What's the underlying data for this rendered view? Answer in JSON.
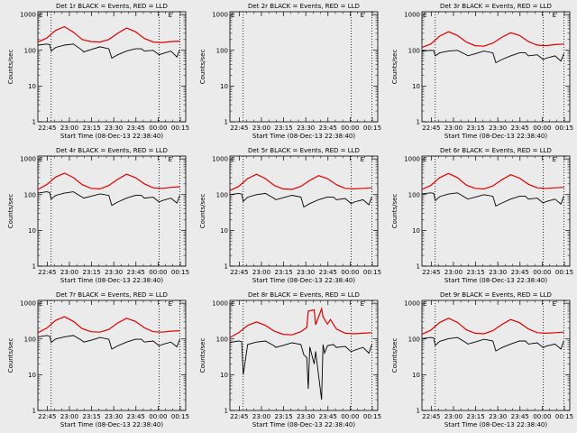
{
  "colors": {
    "background": "#ebebeb",
    "events": "#000000",
    "lld": "#e00000",
    "axis": "#000000"
  },
  "common": {
    "ylabel": "Counts/sec",
    "xlabel": "Start Time (08-Dec-13 22:38:40)",
    "x_ticks": [
      "22:45",
      "23:00",
      "23:15",
      "23:30",
      "23:45",
      "00:00",
      "00:15"
    ],
    "x_tick_minutes": [
      6.33,
      21.33,
      36.33,
      51.33,
      66.33,
      81.33,
      96.33
    ],
    "y_ticks": [
      "1",
      "10",
      "100",
      "1000"
    ],
    "y_tick_values": [
      1,
      10,
      100,
      1000
    ],
    "ylim": [
      1,
      1200
    ],
    "xlim_minutes": [
      0,
      100
    ],
    "marker_label": "E",
    "marker_minutes": 90,
    "dotted_line_minutes": [
      9,
      82,
      96
    ]
  },
  "chart_data": [
    {
      "type": "line",
      "title": "Det 1r BLACK = Events, RED = LLD",
      "ylabel": "Counts/sec",
      "xlabel": "Start Time (08-Dec-13 22:38:40)",
      "dotted": [
        9,
        82,
        96
      ],
      "marker": "E",
      "series": [
        {
          "name": "LLD",
          "color": "#e00000",
          "x": [
            0,
            6,
            12,
            18,
            24,
            30,
            36,
            42,
            48,
            54,
            60,
            66,
            72,
            78,
            84,
            90,
            96
          ],
          "y": [
            170,
            220,
            360,
            460,
            320,
            200,
            175,
            170,
            200,
            300,
            420,
            330,
            215,
            170,
            165,
            175,
            180
          ]
        },
        {
          "name": "Events",
          "color": "#000000",
          "x": [
            0,
            6,
            8,
            9,
            12,
            18,
            24,
            30,
            31,
            36,
            42,
            48,
            50,
            54,
            60,
            66,
            70,
            72,
            78,
            82,
            84,
            90,
            94,
            96
          ],
          "y": [
            140,
            150,
            145,
            95,
            120,
            140,
            150,
            100,
            90,
            105,
            125,
            110,
            60,
            75,
            95,
            110,
            110,
            95,
            100,
            75,
            80,
            95,
            65,
            105
          ]
        }
      ]
    },
    {
      "type": "line",
      "title": "Det 2r BLACK = Events, RED = LLD",
      "ylabel": "Counts/sec",
      "xlabel": "Start Time (08-Dec-13 22:38:40)",
      "dotted": [
        9,
        82,
        96
      ],
      "marker": "E",
      "series": []
    },
    {
      "type": "line",
      "title": "Det 3r BLACK = Events, RED = LLD",
      "ylabel": "Counts/sec",
      "xlabel": "Start Time (08-Dec-13 22:38:40)",
      "dotted": [
        9,
        82,
        96
      ],
      "marker": "E",
      "series": [
        {
          "name": "LLD",
          "color": "#e00000",
          "x": [
            0,
            6,
            12,
            18,
            24,
            30,
            36,
            42,
            48,
            54,
            60,
            66,
            72,
            78,
            84,
            90,
            96
          ],
          "y": [
            120,
            150,
            250,
            330,
            260,
            170,
            135,
            130,
            160,
            230,
            310,
            260,
            175,
            140,
            135,
            145,
            150
          ]
        },
        {
          "name": "Events",
          "color": "#000000",
          "x": [
            0,
            6,
            8,
            9,
            12,
            18,
            24,
            30,
            31,
            36,
            42,
            48,
            50,
            54,
            60,
            66,
            70,
            72,
            78,
            82,
            84,
            90,
            94,
            96
          ],
          "y": [
            95,
            100,
            98,
            70,
            85,
            95,
            100,
            75,
            70,
            80,
            95,
            85,
            45,
            55,
            70,
            85,
            85,
            70,
            75,
            55,
            60,
            70,
            50,
            80
          ]
        }
      ]
    },
    {
      "type": "line",
      "title": "Det 4r BLACK = Events, RED = LLD",
      "ylabel": "Counts/sec",
      "xlabel": "Start Time (08-Dec-13 22:38:40)",
      "dotted": [
        9,
        82,
        96
      ],
      "marker": "E",
      "series": [
        {
          "name": "LLD",
          "color": "#e00000",
          "x": [
            0,
            6,
            12,
            18,
            24,
            30,
            36,
            42,
            48,
            54,
            60,
            66,
            72,
            78,
            84,
            90,
            96
          ],
          "y": [
            140,
            190,
            310,
            400,
            300,
            190,
            150,
            145,
            180,
            270,
            370,
            300,
            200,
            155,
            150,
            160,
            165
          ]
        },
        {
          "name": "Events",
          "color": "#000000",
          "x": [
            0,
            6,
            8,
            9,
            12,
            18,
            24,
            30,
            31,
            36,
            42,
            48,
            50,
            54,
            60,
            66,
            70,
            72,
            78,
            82,
            84,
            90,
            94,
            96
          ],
          "y": [
            110,
            120,
            115,
            75,
            95,
            110,
            120,
            85,
            80,
            90,
            105,
            95,
            50,
            62,
            80,
            95,
            95,
            80,
            85,
            62,
            68,
            80,
            58,
            95
          ]
        }
      ]
    },
    {
      "type": "line",
      "title": "Det 5r BLACK = Events, RED = LLD",
      "ylabel": "Counts/sec",
      "xlabel": "Start Time (08-Dec-13 22:38:40)",
      "dotted": [
        9,
        82,
        96
      ],
      "marker": "E",
      "series": [
        {
          "name": "LLD",
          "color": "#e00000",
          "x": [
            0,
            6,
            12,
            18,
            24,
            30,
            36,
            42,
            48,
            54,
            60,
            66,
            72,
            78,
            84,
            90,
            96
          ],
          "y": [
            130,
            170,
            280,
            370,
            280,
            180,
            145,
            140,
            170,
            250,
            340,
            280,
            190,
            150,
            145,
            150,
            155
          ]
        },
        {
          "name": "Events",
          "color": "#000000",
          "x": [
            0,
            6,
            8,
            9,
            12,
            18,
            24,
            30,
            31,
            36,
            42,
            48,
            50,
            54,
            60,
            66,
            70,
            72,
            78,
            82,
            84,
            90,
            94,
            96
          ],
          "y": [
            100,
            108,
            104,
            65,
            85,
            100,
            108,
            78,
            72,
            82,
            96,
            86,
            45,
            56,
            72,
            86,
            86,
            72,
            78,
            56,
            62,
            72,
            52,
            88
          ]
        }
      ]
    },
    {
      "type": "line",
      "title": "Det 6r BLACK = Events, RED = LLD",
      "ylabel": "Counts/sec",
      "xlabel": "Start Time (08-Dec-13 22:38:40)",
      "dotted": [
        9,
        82,
        96
      ],
      "marker": "E",
      "series": [
        {
          "name": "LLD",
          "color": "#e00000",
          "x": [
            0,
            6,
            12,
            18,
            24,
            30,
            36,
            42,
            48,
            54,
            60,
            66,
            72,
            78,
            84,
            90,
            96
          ],
          "y": [
            140,
            180,
            300,
            390,
            300,
            185,
            150,
            145,
            175,
            260,
            360,
            290,
            195,
            155,
            150,
            155,
            160
          ]
        },
        {
          "name": "Events",
          "color": "#000000",
          "x": [
            0,
            6,
            8,
            9,
            12,
            18,
            24,
            30,
            31,
            36,
            42,
            48,
            50,
            54,
            60,
            66,
            70,
            72,
            78,
            82,
            84,
            90,
            94,
            96
          ],
          "y": [
            105,
            112,
            108,
            68,
            88,
            104,
            112,
            80,
            75,
            85,
            100,
            90,
            48,
            58,
            75,
            90,
            90,
            75,
            80,
            58,
            64,
            75,
            54,
            92
          ]
        }
      ]
    },
    {
      "type": "line",
      "title": "Det 7r BLACK = Events, RED = LLD",
      "ylabel": "Counts/sec",
      "xlabel": "Start Time (08-Dec-13 22:38:40)",
      "dotted": [
        9,
        82,
        96
      ],
      "marker": "E",
      "series": [
        {
          "name": "LLD",
          "color": "#e00000",
          "x": [
            0,
            6,
            12,
            18,
            24,
            30,
            36,
            42,
            48,
            54,
            60,
            66,
            72,
            78,
            84,
            90,
            96
          ],
          "y": [
            150,
            200,
            330,
            420,
            310,
            195,
            160,
            155,
            185,
            280,
            380,
            310,
            205,
            160,
            155,
            165,
            170
          ]
        },
        {
          "name": "Events",
          "color": "#000000",
          "x": [
            0,
            6,
            8,
            9,
            12,
            18,
            24,
            30,
            31,
            36,
            42,
            48,
            50,
            54,
            60,
            66,
            70,
            72,
            78,
            82,
            84,
            90,
            94,
            96
          ],
          "y": [
            115,
            125,
            120,
            80,
            100,
            115,
            125,
            90,
            82,
            92,
            110,
            98,
            52,
            64,
            82,
            98,
            98,
            82,
            88,
            64,
            70,
            82,
            60,
            98
          ]
        }
      ]
    },
    {
      "type": "line",
      "title": "Det 8r BLACK = Events, RED = LLD",
      "ylabel": "Counts/sec",
      "xlabel": "Start Time (08-Dec-13 22:38:40)",
      "dotted": [
        9,
        82,
        96
      ],
      "marker": "E",
      "series": [
        {
          "name": "LLD",
          "color": "#e00000",
          "x": [
            0,
            6,
            12,
            18,
            24,
            30,
            36,
            42,
            48,
            52,
            53,
            57,
            58,
            62,
            63,
            66,
            68,
            72,
            78,
            84,
            90,
            96
          ],
          "y": [
            110,
            150,
            240,
            300,
            240,
            165,
            135,
            130,
            160,
            210,
            600,
            650,
            250,
            700,
            420,
            260,
            350,
            190,
            145,
            140,
            145,
            150
          ]
        },
        {
          "name": "Events",
          "color": "#000000",
          "x": [
            0,
            6,
            8,
            9,
            12,
            18,
            24,
            30,
            31,
            36,
            42,
            48,
            50,
            52,
            53,
            54,
            57,
            58,
            62,
            63,
            64,
            66,
            70,
            72,
            78,
            82,
            84,
            90,
            94,
            96
          ],
          "y": [
            80,
            88,
            84,
            10,
            70,
            82,
            88,
            64,
            58,
            66,
            78,
            70,
            36,
            30,
            4,
            60,
            20,
            45,
            2,
            70,
            40,
            65,
            70,
            58,
            62,
            44,
            48,
            58,
            40,
            70
          ]
        }
      ]
    },
    {
      "type": "line",
      "title": "Det 9r BLACK = Events, RED = LLD",
      "ylabel": "Counts/sec",
      "xlabel": "Start Time (08-Dec-13 22:38:40)",
      "dotted": [
        9,
        82,
        96
      ],
      "marker": "E",
      "series": [
        {
          "name": "LLD",
          "color": "#e00000",
          "x": [
            0,
            6,
            12,
            18,
            24,
            30,
            36,
            42,
            48,
            54,
            60,
            66,
            72,
            78,
            84,
            90,
            96
          ],
          "y": [
            135,
            175,
            290,
            380,
            290,
            180,
            145,
            140,
            170,
            255,
            350,
            285,
            190,
            150,
            145,
            150,
            155
          ]
        },
        {
          "name": "Events",
          "color": "#000000",
          "x": [
            0,
            6,
            8,
            9,
            12,
            18,
            24,
            30,
            31,
            36,
            42,
            48,
            50,
            54,
            60,
            66,
            70,
            72,
            78,
            82,
            84,
            90,
            94,
            96
          ],
          "y": [
            102,
            110,
            106,
            66,
            86,
            102,
            110,
            78,
            72,
            82,
            98,
            88,
            46,
            57,
            72,
            88,
            88,
            72,
            78,
            57,
            63,
            72,
            52,
            90
          ]
        }
      ]
    }
  ]
}
